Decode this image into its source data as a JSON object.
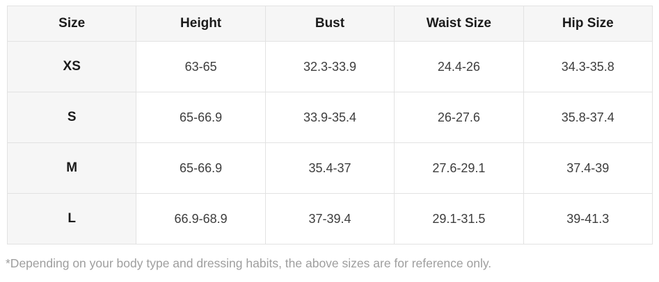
{
  "size_chart": {
    "headers": [
      "Size",
      "Height",
      "Bust",
      "Waist Size",
      "Hip Size"
    ],
    "rows": [
      [
        "XS",
        "63-65",
        "32.3-33.9",
        "24.4-26",
        "34.3-35.8"
      ],
      [
        "S",
        "65-66.9",
        "33.9-35.4",
        "26-27.6",
        "35.8-37.4"
      ],
      [
        "M",
        "65-66.9",
        "35.4-37",
        "27.6-29.1",
        "37.4-39"
      ],
      [
        "L",
        "66.9-68.9",
        "37-39.4",
        "29.1-31.5",
        "39-41.3"
      ]
    ]
  },
  "footnote": "*Depending on your body type and dressing habits, the above sizes are for reference only.",
  "colors": {
    "header_bg": "#f6f6f6",
    "border": "#e2e2e2",
    "heading_text": "#1b1b1b",
    "body_text": "#3d3d3d",
    "footnote_text": "#9e9e9e"
  },
  "chart_data": {
    "type": "table",
    "title": "",
    "columns": [
      "Size",
      "Height",
      "Bust",
      "Waist Size",
      "Hip Size"
    ],
    "rows": [
      {
        "size": "XS",
        "height": "63-65",
        "bust": "32.3-33.9",
        "waist_size": "24.4-26",
        "hip_size": "34.3-35.8"
      },
      {
        "size": "S",
        "height": "65-66.9",
        "bust": "33.9-35.4",
        "waist_size": "26-27.6",
        "hip_size": "35.8-37.4"
      },
      {
        "size": "M",
        "height": "65-66.9",
        "bust": "35.4-37",
        "waist_size": "27.6-29.1",
        "hip_size": "37.4-39"
      },
      {
        "size": "L",
        "height": "66.9-68.9",
        "bust": "37-39.4",
        "waist_size": "29.1-31.5",
        "hip_size": "39-41.3"
      }
    ],
    "footnote": "*Depending on your body type and dressing habits, the above sizes are for reference only.",
    "layout_hints": {
      "grid": true,
      "header_row_shaded": true,
      "first_column_shaded": true
    }
  }
}
